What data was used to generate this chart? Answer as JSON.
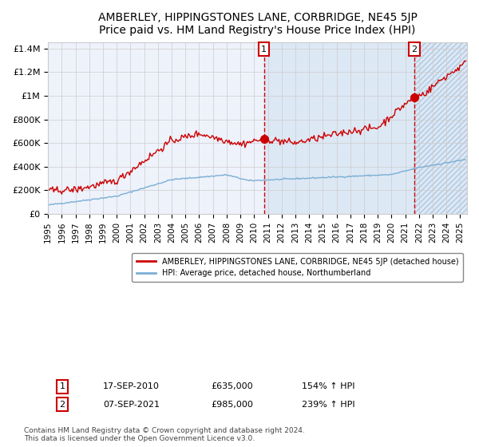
{
  "title": "AMBERLEY, HIPPINGSTONES LANE, CORBRIDGE, NE45 5JP",
  "subtitle": "Price paid vs. HM Land Registry's House Price Index (HPI)",
  "ylim": [
    0,
    1450000
  ],
  "xlim_start": 1995.0,
  "xlim_end": 2025.5,
  "yticks": [
    0,
    200000,
    400000,
    600000,
    800000,
    1000000,
    1200000,
    1400000
  ],
  "ytick_labels": [
    "£0",
    "£200K",
    "£400K",
    "£600K",
    "£800K",
    "£1M",
    "£1.2M",
    "£1.4M"
  ],
  "xticks": [
    1995,
    1996,
    1997,
    1998,
    1999,
    2000,
    2001,
    2002,
    2003,
    2004,
    2005,
    2006,
    2007,
    2008,
    2009,
    2010,
    2011,
    2012,
    2013,
    2014,
    2015,
    2016,
    2017,
    2018,
    2019,
    2020,
    2021,
    2022,
    2023,
    2024,
    2025
  ],
  "hpi_color": "#7bafd4",
  "price_color": "#cc0000",
  "sale1_x": 2010.71,
  "sale1_y": 635000,
  "sale2_x": 2021.67,
  "sale2_y": 985000,
  "sale1_label": "1",
  "sale2_label": "2",
  "sale1_date": "17-SEP-2010",
  "sale1_price": "£635,000",
  "sale1_hpi": "154% ↑ HPI",
  "sale2_date": "07-SEP-2021",
  "sale2_price": "£985,000",
  "sale2_hpi": "239% ↑ HPI",
  "legend_line1": "AMBERLEY, HIPPINGSTONES LANE, CORBRIDGE, NE45 5JP (detached house)",
  "legend_line2": "HPI: Average price, detached house, Northumberland",
  "footnote": "Contains HM Land Registry data © Crown copyright and database right 2024.\nThis data is licensed under the Open Government Licence v3.0.",
  "background_color": "#ffffff",
  "plot_bg_color": "#eef2fb",
  "shade_color": "#dde8f5",
  "hatch_color": "#dde8f5",
  "grid_color": "#cccccc"
}
